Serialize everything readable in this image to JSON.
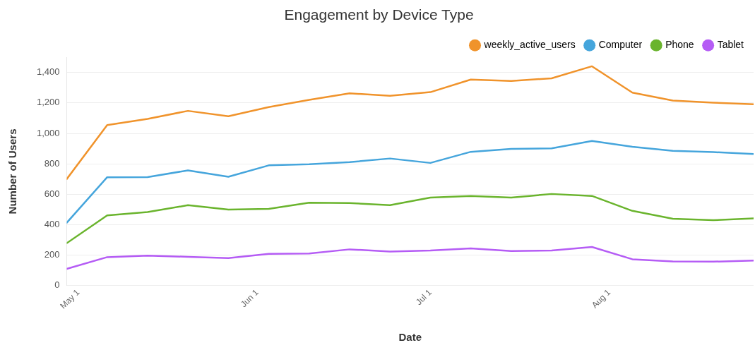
{
  "chart_data": {
    "type": "line",
    "title": "Engagement by Device Type",
    "xlabel": "Date",
    "ylabel": "Number of Users",
    "x": [
      "--04-29",
      "--05-06",
      "--05-13",
      "--05-20",
      "--05-27",
      "--06-03",
      "--06-10",
      "--06-17",
      "--06-24",
      "--07-01",
      "--07-08",
      "--07-15",
      "--07-22",
      "--07-29",
      "--08-05",
      "--08-12",
      "--08-19",
      "--08-26"
    ],
    "series": [
      {
        "name": "weekly_active_users",
        "color": "#f0932b",
        "values": [
          700,
          1055,
          1095,
          1148,
          1113,
          1173,
          1220,
          1263,
          1247,
          1271,
          1354,
          1345,
          1362,
          1441,
          1268,
          1216,
          1202,
          1192
        ]
      },
      {
        "name": "Computer",
        "color": "#45a5dc",
        "values": [
          413,
          712,
          713,
          757,
          715,
          790,
          797,
          811,
          835,
          806,
          879,
          898,
          902,
          950,
          912,
          885,
          877,
          865
        ]
      },
      {
        "name": "Phone",
        "color": "#6ab42d",
        "values": [
          279,
          461,
          483,
          528,
          499,
          504,
          545,
          542,
          528,
          578,
          589,
          578,
          602,
          589,
          491,
          439,
          430,
          441
        ]
      },
      {
        "name": "Tablet",
        "color": "#b55cf5",
        "values": [
          110,
          187,
          197,
          189,
          181,
          208,
          211,
          238,
          224,
          231,
          244,
          227,
          231,
          254,
          173,
          159,
          157,
          165
        ]
      }
    ],
    "xlim": [
      "--04-29",
      "--08-26"
    ],
    "xticks": [
      {
        "value": "--05-01",
        "label": "May 1"
      },
      {
        "value": "--06-01",
        "label": "Jun 1"
      },
      {
        "value": "--07-01",
        "label": "Jul 1"
      },
      {
        "value": "--08-01",
        "label": "Aug 1"
      }
    ],
    "ylim": [
      0,
      1500
    ],
    "yticks": [
      {
        "value": 0,
        "label": "0"
      },
      {
        "value": 200,
        "label": "200"
      },
      {
        "value": 400,
        "label": "400"
      },
      {
        "value": 600,
        "label": "600"
      },
      {
        "value": 800,
        "label": "800"
      },
      {
        "value": 1000,
        "label": "1,000"
      },
      {
        "value": 1200,
        "label": "1,200"
      },
      {
        "value": 1400,
        "label": "1,400"
      }
    ],
    "grid": "y",
    "legend": "top right",
    "marker": "none",
    "line_style": "solid"
  }
}
